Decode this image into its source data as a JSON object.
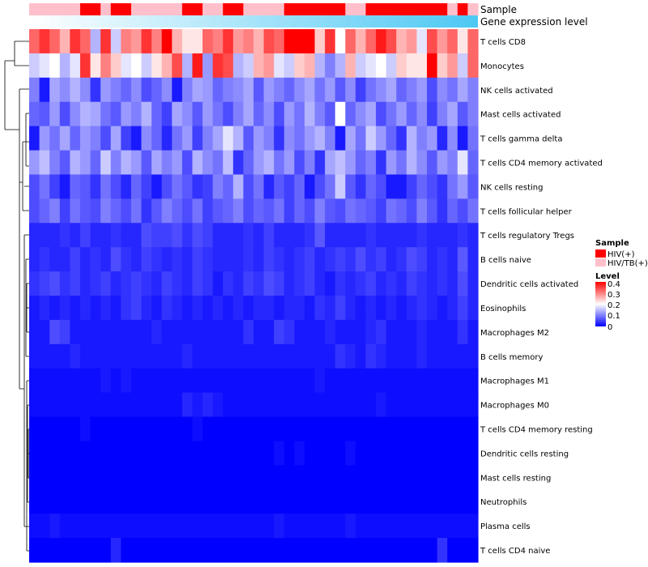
{
  "chart_data": {
    "type": "heatmap",
    "title": "",
    "annotation_labels": {
      "sample": "Sample",
      "gene": "Gene expression level"
    },
    "num_columns": 44,
    "rows": [
      "T cells CD8",
      "Monocytes",
      "NK cells activated",
      "Mast cells activated",
      "T cells gamma delta",
      "T cells CD4 memory activated",
      "NK cells resting",
      "T cells follicular helper",
      "T cells regulatory  Tregs",
      "B cells naive",
      "Dendritic cells activated",
      "Eosinophils",
      "Macrophages M2",
      "B cells memory",
      "Macrophages M1",
      "Macrophages M0",
      "T cells CD4 memory resting",
      "Dendritic cells resting",
      "Mast cells resting",
      "Neutrophils",
      "Plasma cells",
      "T cells CD4 naive"
    ],
    "sample_groups": "LLLLLHHLHHLLLLLHHLLHHLLLLHHHHHHLLHHHHHHHHLHL",
    "gene_expression": {
      "from": "#ffffff",
      "to": "#4dc8f3"
    },
    "values": [
      [
        0.32,
        0.36,
        0.32,
        0.26,
        0.36,
        0.32,
        0.14,
        0.36,
        0.16,
        0.3,
        0.28,
        0.36,
        0.3,
        0.4,
        0.26,
        0.22,
        0.22,
        0.32,
        0.3,
        0.36,
        0.28,
        0.3,
        0.26,
        0.34,
        0.32,
        0.4,
        0.4,
        0.4,
        0.24,
        0.36,
        0.2,
        0.32,
        0.26,
        0.32,
        0.38,
        0.34,
        0.26,
        0.28,
        0.18,
        0.34,
        0.28,
        0.32,
        0.22,
        0.32
      ],
      [
        0.16,
        0.18,
        0.2,
        0.14,
        0.18,
        0.36,
        0.22,
        0.3,
        0.24,
        0.18,
        0.2,
        0.16,
        0.22,
        0.26,
        0.34,
        0.14,
        0.38,
        0.12,
        0.36,
        0.34,
        0.14,
        0.16,
        0.26,
        0.28,
        0.18,
        0.16,
        0.24,
        0.26,
        0.14,
        0.1,
        0.14,
        0.26,
        0.16,
        0.18,
        0.2,
        0.16,
        0.24,
        0.22,
        0.22,
        0.4,
        0.24,
        0.28,
        0.16,
        0.32
      ],
      [
        0.1,
        0.02,
        0.13,
        0.11,
        0.14,
        0.11,
        0.04,
        0.12,
        0.1,
        0.08,
        0.11,
        0.06,
        0.08,
        0.11,
        0.02,
        0.1,
        0.13,
        0.12,
        0.08,
        0.1,
        0.11,
        0.13,
        0.07,
        0.12,
        0.1,
        0.08,
        0.11,
        0.13,
        0.09,
        0.12,
        0.07,
        0.11,
        0.05,
        0.09,
        0.11,
        0.13,
        0.08,
        0.1,
        0.12,
        0.06,
        0.11,
        0.09,
        0.13,
        0.1
      ],
      [
        0.08,
        0.07,
        0.12,
        0.06,
        0.11,
        0.14,
        0.13,
        0.09,
        0.07,
        0.12,
        0.1,
        0.14,
        0.08,
        0.05,
        0.13,
        0.11,
        0.07,
        0.12,
        0.09,
        0.06,
        0.1,
        0.13,
        0.08,
        0.11,
        0.06,
        0.12,
        0.09,
        0.14,
        0.1,
        0.07,
        0.2,
        0.08,
        0.11,
        0.13,
        0.06,
        0.09,
        0.12,
        0.08,
        0.11,
        0.05,
        0.1,
        0.13,
        0.07,
        0.1
      ],
      [
        0.02,
        0.12,
        0.09,
        0.13,
        0.08,
        0.12,
        0.1,
        0.06,
        0.13,
        0.05,
        0.02,
        0.11,
        0.08,
        0.03,
        0.09,
        0.12,
        0.05,
        0.1,
        0.13,
        0.18,
        0.14,
        0.07,
        0.12,
        0.1,
        0.04,
        0.11,
        0.09,
        0.12,
        0.14,
        0.1,
        0.02,
        0.13,
        0.09,
        0.16,
        0.12,
        0.08,
        0.04,
        0.14,
        0.1,
        0.12,
        0.03,
        0.11,
        0.02,
        0.09
      ],
      [
        0.12,
        0.15,
        0.1,
        0.07,
        0.14,
        0.12,
        0.08,
        0.16,
        0.1,
        0.14,
        0.12,
        0.07,
        0.13,
        0.1,
        0.12,
        0.06,
        0.14,
        0.11,
        0.09,
        0.15,
        0.04,
        0.08,
        0.12,
        0.14,
        0.09,
        0.12,
        0.06,
        0.1,
        0.04,
        0.13,
        0.15,
        0.12,
        0.08,
        0.1,
        0.04,
        0.12,
        0.09,
        0.14,
        0.11,
        0.07,
        0.12,
        0.1,
        0.18,
        0.08
      ],
      [
        0.06,
        0.09,
        0.05,
        0.02,
        0.08,
        0.07,
        0.04,
        0.09,
        0.06,
        0.03,
        0.08,
        0.05,
        0.02,
        0.06,
        0.09,
        0.07,
        0.04,
        0.05,
        0.1,
        0.08,
        0.14,
        0.06,
        0.09,
        0.03,
        0.07,
        0.05,
        0.08,
        0.02,
        0.06,
        0.09,
        0.16,
        0.07,
        0.04,
        0.08,
        0.06,
        0.02,
        0.02,
        0.05,
        0.08,
        0.06,
        0.04,
        0.09,
        0.12,
        0.07
      ],
      [
        0.06,
        0.08,
        0.1,
        0.05,
        0.09,
        0.07,
        0.06,
        0.1,
        0.08,
        0.06,
        0.09,
        0.04,
        0.07,
        0.1,
        0.08,
        0.06,
        0.09,
        0.05,
        0.07,
        0.08,
        0.1,
        0.06,
        0.08,
        0.07,
        0.09,
        0.05,
        0.08,
        0.06,
        0.1,
        0.07,
        0.06,
        0.09,
        0.08,
        0.07,
        0.05,
        0.09,
        0.08,
        0.06,
        0.1,
        0.07,
        0.04,
        0.08,
        0.06,
        0.09
      ],
      [
        0.03,
        0.03,
        0.03,
        0.04,
        0.03,
        0.05,
        0.03,
        0.03,
        0.04,
        0.03,
        0.03,
        0.06,
        0.05,
        0.05,
        0.06,
        0.04,
        0.06,
        0.05,
        0.03,
        0.03,
        0.03,
        0.04,
        0.03,
        0.05,
        0.03,
        0.03,
        0.03,
        0.04,
        0.07,
        0.03,
        0.03,
        0.03,
        0.03,
        0.04,
        0.03,
        0.03,
        0.03,
        0.03,
        0.04,
        0.03,
        0.03,
        0.03,
        0.04,
        0.03
      ],
      [
        0.03,
        0.04,
        0.03,
        0.03,
        0.05,
        0.03,
        0.04,
        0.03,
        0.06,
        0.04,
        0.03,
        0.05,
        0.04,
        0.03,
        0.04,
        0.03,
        0.05,
        0.04,
        0.03,
        0.03,
        0.03,
        0.04,
        0.03,
        0.05,
        0.04,
        0.03,
        0.04,
        0.05,
        0.03,
        0.04,
        0.05,
        0.04,
        0.06,
        0.04,
        0.05,
        0.03,
        0.04,
        0.06,
        0.05,
        0.03,
        0.04,
        0.03,
        0.07,
        0.03
      ],
      [
        0.04,
        0.05,
        0.06,
        0.04,
        0.05,
        0.03,
        0.04,
        0.05,
        0.03,
        0.04,
        0.05,
        0.04,
        0.03,
        0.05,
        0.04,
        0.03,
        0.05,
        0.04,
        0.02,
        0.04,
        0.03,
        0.05,
        0.04,
        0.06,
        0.05,
        0.03,
        0.04,
        0.05,
        0.03,
        0.02,
        0.04,
        0.03,
        0.04,
        0.05,
        0.03,
        0.04,
        0.03,
        0.05,
        0.04,
        0.03,
        0.04,
        0.03,
        0.06,
        0.03
      ],
      [
        0.02,
        0.03,
        0.02,
        0.03,
        0.02,
        0.03,
        0.02,
        0.03,
        0.02,
        0.04,
        0.05,
        0.03,
        0.02,
        0.04,
        0.03,
        0.02,
        0.03,
        0.02,
        0.03,
        0.02,
        0.03,
        0.02,
        0.03,
        0.03,
        0.02,
        0.03,
        0.03,
        0.02,
        0.04,
        0.03,
        0.05,
        0.03,
        0.02,
        0.03,
        0.02,
        0.03,
        0.02,
        0.03,
        0.04,
        0.03,
        0.02,
        0.03,
        0.05,
        0.03
      ],
      [
        0.02,
        0.02,
        0.06,
        0.05,
        0.02,
        0.02,
        0.02,
        0.02,
        0.02,
        0.02,
        0.02,
        0.02,
        0.03,
        0.02,
        0.02,
        0.02,
        0.02,
        0.02,
        0.02,
        0.02,
        0.02,
        0.04,
        0.02,
        0.02,
        0.05,
        0.04,
        0.02,
        0.02,
        0.02,
        0.03,
        0.02,
        0.02,
        0.02,
        0.03,
        0.04,
        0.02,
        0.02,
        0.02,
        0.03,
        0.02,
        0.02,
        0.02,
        0.04,
        0.02
      ],
      [
        0.02,
        0.02,
        0.02,
        0.02,
        0.03,
        0.02,
        0.02,
        0.02,
        0.02,
        0.02,
        0.02,
        0.02,
        0.02,
        0.02,
        0.02,
        0.03,
        0.02,
        0.02,
        0.02,
        0.02,
        0.02,
        0.02,
        0.02,
        0.02,
        0.02,
        0.02,
        0.02,
        0.02,
        0.02,
        0.02,
        0.04,
        0.03,
        0.02,
        0.04,
        0.03,
        0.02,
        0.02,
        0.02,
        0.03,
        0.02,
        0.02,
        0.02,
        0.02,
        0.02
      ],
      [
        0.01,
        0.01,
        0.01,
        0.01,
        0.01,
        0.01,
        0.01,
        0.02,
        0.01,
        0.02,
        0.01,
        0.01,
        0.01,
        0.01,
        0.01,
        0.01,
        0.01,
        0.01,
        0.01,
        0.01,
        0.01,
        0.01,
        0.01,
        0.01,
        0.01,
        0.01,
        0.01,
        0.01,
        0.02,
        0.01,
        0.01,
        0.01,
        0.01,
        0.01,
        0.01,
        0.01,
        0.01,
        0.01,
        0.01,
        0.01,
        0.01,
        0.01,
        0.01,
        0.01
      ],
      [
        0.01,
        0.01,
        0.01,
        0.01,
        0.01,
        0.01,
        0.01,
        0.01,
        0.01,
        0.01,
        0.01,
        0.01,
        0.01,
        0.01,
        0.01,
        0.03,
        0.02,
        0.03,
        0.02,
        0.01,
        0.01,
        0.01,
        0.01,
        0.01,
        0.01,
        0.01,
        0.01,
        0.01,
        0.01,
        0.01,
        0.01,
        0.01,
        0.01,
        0.01,
        0.02,
        0.01,
        0.01,
        0.01,
        0.01,
        0.01,
        0.01,
        0.01,
        0.01,
        0.01
      ],
      [
        0.0,
        0.0,
        0.0,
        0.0,
        0.0,
        0.01,
        0.0,
        0.0,
        0.0,
        0.0,
        0.0,
        0.0,
        0.0,
        0.0,
        0.0,
        0.0,
        0.01,
        0.0,
        0.0,
        0.0,
        0.0,
        0.0,
        0.0,
        0.0,
        0.0,
        0.0,
        0.0,
        0.0,
        0.0,
        0.0,
        0.0,
        0.0,
        0.0,
        0.0,
        0.0,
        0.0,
        0.0,
        0.0,
        0.0,
        0.0,
        0.0,
        0.0,
        0.0,
        0.0
      ],
      [
        0.0,
        0.0,
        0.0,
        0.0,
        0.0,
        0.0,
        0.0,
        0.0,
        0.0,
        0.0,
        0.0,
        0.0,
        0.0,
        0.0,
        0.0,
        0.0,
        0.0,
        0.0,
        0.0,
        0.0,
        0.0,
        0.0,
        0.0,
        0.0,
        0.01,
        0.0,
        0.01,
        0.0,
        0.0,
        0.0,
        0.0,
        0.01,
        0.0,
        0.0,
        0.0,
        0.0,
        0.0,
        0.0,
        0.0,
        0.0,
        0.0,
        0.0,
        0.0,
        0.0
      ],
      [
        0.0,
        0.0,
        0.0,
        0.0,
        0.0,
        0.0,
        0.0,
        0.0,
        0.0,
        0.0,
        0.0,
        0.0,
        0.0,
        0.0,
        0.0,
        0.0,
        0.0,
        0.0,
        0.0,
        0.0,
        0.0,
        0.0,
        0.0,
        0.0,
        0.0,
        0.0,
        0.0,
        0.0,
        0.0,
        0.0,
        0.0,
        0.0,
        0.0,
        0.0,
        0.0,
        0.0,
        0.0,
        0.0,
        0.0,
        0.0,
        0.0,
        0.0,
        0.0,
        0.0
      ],
      [
        0.0,
        0.0,
        0.0,
        0.0,
        0.0,
        0.0,
        0.0,
        0.0,
        0.0,
        0.0,
        0.0,
        0.0,
        0.0,
        0.0,
        0.0,
        0.0,
        0.0,
        0.0,
        0.0,
        0.0,
        0.0,
        0.0,
        0.0,
        0.0,
        0.0,
        0.0,
        0.0,
        0.0,
        0.0,
        0.0,
        0.0,
        0.0,
        0.0,
        0.0,
        0.0,
        0.0,
        0.0,
        0.0,
        0.0,
        0.0,
        0.0,
        0.0,
        0.0,
        0.0
      ],
      [
        0.01,
        0.01,
        0.02,
        0.01,
        0.01,
        0.01,
        0.01,
        0.01,
        0.01,
        0.01,
        0.01,
        0.01,
        0.01,
        0.01,
        0.01,
        0.01,
        0.01,
        0.01,
        0.01,
        0.01,
        0.01,
        0.01,
        0.01,
        0.01,
        0.02,
        0.01,
        0.01,
        0.01,
        0.01,
        0.01,
        0.01,
        0.02,
        0.01,
        0.01,
        0.01,
        0.01,
        0.01,
        0.01,
        0.01,
        0.01,
        0.01,
        0.01,
        0.01,
        0.01
      ],
      [
        0.0,
        0.0,
        0.0,
        0.0,
        0.0,
        0.0,
        0.0,
        0.0,
        0.03,
        0.0,
        0.0,
        0.0,
        0.0,
        0.0,
        0.0,
        0.0,
        0.0,
        0.0,
        0.0,
        0.0,
        0.0,
        0.0,
        0.0,
        0.0,
        0.0,
        0.0,
        0.0,
        0.0,
        0.0,
        0.0,
        0.0,
        0.0,
        0.0,
        0.0,
        0.0,
        0.0,
        0.0,
        0.0,
        0.0,
        0.0,
        0.04,
        0.0,
        0.0,
        0.0
      ]
    ],
    "color_scale": {
      "min": 0,
      "max": 0.4,
      "stops": [
        {
          "value": 0,
          "color": "#0000ff"
        },
        {
          "value": 0.2,
          "color": "#ffffff"
        },
        {
          "value": 0.4,
          "color": "#ff0000"
        }
      ]
    },
    "legend": {
      "sample_title": "Sample",
      "sample_items": [
        {
          "key": "H",
          "label": "HIV(+)",
          "color": "#ff0000"
        },
        {
          "key": "L",
          "label": "HIV/TB(+)",
          "color": "#ffc0cb"
        }
      ],
      "level_title": "Level",
      "level_ticks": [
        "0.4",
        "0.3",
        "0.2",
        "0.1",
        "0"
      ],
      "position": "right"
    }
  }
}
